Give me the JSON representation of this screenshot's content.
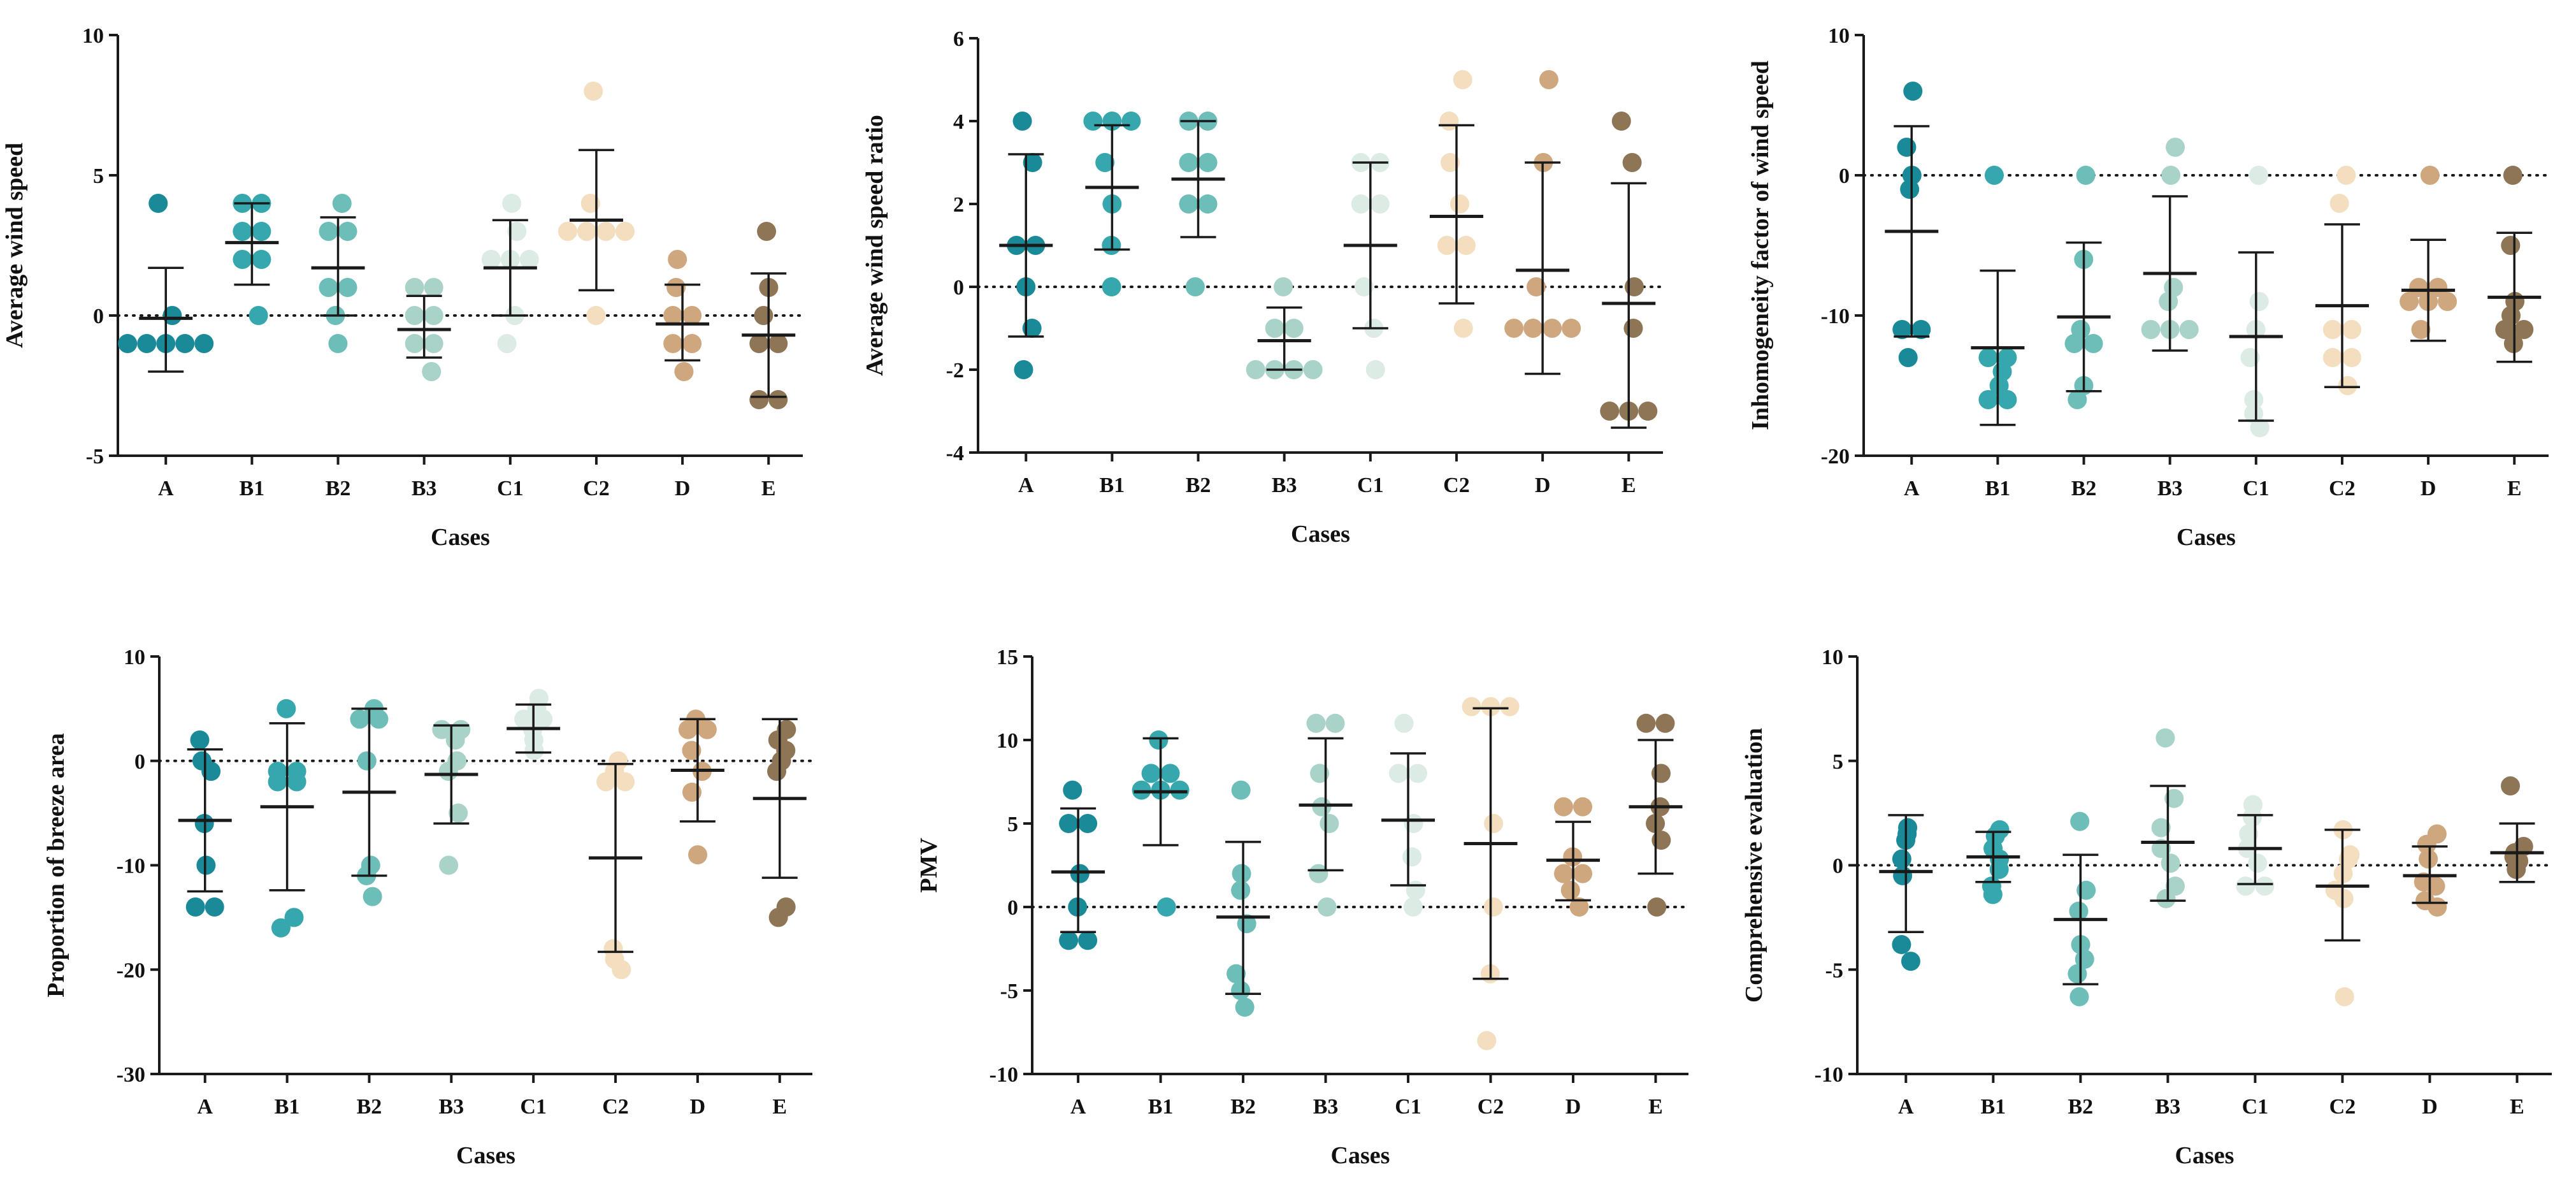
{
  "figure": {
    "cases": [
      "A",
      "B1",
      "B2",
      "B3",
      "C1",
      "C2",
      "D",
      "E"
    ],
    "case_colors": {
      "A": "#1b8a98",
      "B1": "#35a7ad",
      "B2": "#6dbdb8",
      "B3": "#a9d2c8",
      "C1": "#dcebe4",
      "C2": "#f3dec0",
      "D": "#cfa77f",
      "E": "#8e7556"
    }
  },
  "chart_data": [
    {
      "type": "scatter",
      "id": "avg-wind-speed",
      "ylabel": "Average wind speed",
      "xlabel": "Cases",
      "ylim": [
        -5,
        10
      ],
      "yticks": [
        "-5",
        "0",
        "5",
        "10"
      ],
      "categories": [
        "A",
        "B1",
        "B2",
        "B3",
        "C1",
        "C2",
        "D",
        "E"
      ],
      "series": [
        {
          "name": "A",
          "points": [
            4,
            0,
            -1,
            -1,
            -1,
            -1,
            -1
          ],
          "mean": -0.1,
          "sd_low": -2.0,
          "sd_high": 1.7
        },
        {
          "name": "B1",
          "points": [
            4,
            4,
            3,
            3,
            2,
            2,
            0
          ],
          "mean": 2.6,
          "sd_low": 1.1,
          "sd_high": 4.0
        },
        {
          "name": "B2",
          "points": [
            4,
            3,
            3,
            1,
            1,
            0,
            -1
          ],
          "mean": 1.7,
          "sd_low": 0.0,
          "sd_high": 3.5
        },
        {
          "name": "B3",
          "points": [
            1,
            1,
            0,
            0,
            -1,
            -1,
            -2
          ],
          "mean": -0.5,
          "sd_low": -1.5,
          "sd_high": 0.7
        },
        {
          "name": "C1",
          "points": [
            4,
            3,
            2,
            2,
            2,
            0,
            -1
          ],
          "mean": 1.7,
          "sd_low": 0.0,
          "sd_high": 3.4
        },
        {
          "name": "C2",
          "points": [
            8,
            4,
            3,
            3,
            3,
            3,
            0
          ],
          "mean": 3.4,
          "sd_low": 0.9,
          "sd_high": 5.9
        },
        {
          "name": "D",
          "points": [
            2,
            1,
            0,
            0,
            -1,
            -1,
            -2
          ],
          "mean": -0.3,
          "sd_low": -1.6,
          "sd_high": 1.1
        },
        {
          "name": "E",
          "points": [
            3,
            1,
            0,
            -1,
            -1,
            -3,
            -3
          ],
          "mean": -0.7,
          "sd_low": -2.9,
          "sd_high": 1.5
        }
      ]
    },
    {
      "type": "scatter",
      "id": "avg-wind-speed-ratio",
      "ylabel": "Average wind speed ratio",
      "xlabel": "Cases",
      "ylim": [
        -4,
        6
      ],
      "yticks": [
        "-4",
        "-2",
        "0",
        "2",
        "4",
        "6"
      ],
      "categories": [
        "A",
        "B1",
        "B2",
        "B3",
        "C1",
        "C2",
        "D",
        "E"
      ],
      "series": [
        {
          "name": "A",
          "points": [
            4,
            3,
            1,
            1,
            0,
            -1,
            -2
          ],
          "mean": 1.0,
          "sd_low": -1.2,
          "sd_high": 3.2
        },
        {
          "name": "B1",
          "points": [
            4,
            4,
            4,
            3,
            2,
            1,
            0
          ],
          "mean": 2.4,
          "sd_low": 0.9,
          "sd_high": 3.9
        },
        {
          "name": "B2",
          "points": [
            4,
            4,
            3,
            3,
            2,
            2,
            0
          ],
          "mean": 2.6,
          "sd_low": 1.2,
          "sd_high": 4.0
        },
        {
          "name": "B3",
          "points": [
            0,
            -1,
            -1,
            -2,
            -2,
            -2,
            -2
          ],
          "mean": -1.3,
          "sd_low": -2.0,
          "sd_high": -0.5
        },
        {
          "name": "C1",
          "points": [
            3,
            3,
            2,
            2,
            0,
            -1,
            -2
          ],
          "mean": 1.0,
          "sd_low": -1.0,
          "sd_high": 3.0
        },
        {
          "name": "C2",
          "points": [
            5,
            4,
            3,
            2,
            1,
            1,
            -1
          ],
          "mean": 1.7,
          "sd_low": -0.4,
          "sd_high": 3.9
        },
        {
          "name": "D",
          "points": [
            5,
            3,
            0,
            -1,
            -1,
            -1,
            -1
          ],
          "mean": 0.4,
          "sd_low": -2.1,
          "sd_high": 3.0
        },
        {
          "name": "E",
          "points": [
            4,
            3,
            0,
            -1,
            -3,
            -3,
            -3
          ],
          "mean": -0.4,
          "sd_low": -3.4,
          "sd_high": 2.5
        }
      ]
    },
    {
      "type": "scatter",
      "id": "inhomogeneity-factor",
      "ylabel": "Inhomogeneity factor of wind speed",
      "xlabel": "Cases",
      "ylim": [
        -20,
        10
      ],
      "yticks": [
        "-20",
        "-10",
        "0",
        "10"
      ],
      "categories": [
        "A",
        "B1",
        "B2",
        "B3",
        "C1",
        "C2",
        "D",
        "E"
      ],
      "series": [
        {
          "name": "A",
          "points": [
            6,
            2,
            0,
            -1,
            -11,
            -11,
            -13
          ],
          "mean": -4.0,
          "sd_low": -11.5,
          "sd_high": 3.5
        },
        {
          "name": "B1",
          "points": [
            0,
            -13,
            -13,
            -14,
            -15,
            -16,
            -16
          ],
          "mean": -12.3,
          "sd_low": -17.8,
          "sd_high": -6.8
        },
        {
          "name": "B2",
          "points": [
            0,
            -6,
            -11,
            -12,
            -12,
            -15,
            -16
          ],
          "mean": -10.1,
          "sd_low": -15.4,
          "sd_high": -4.8
        },
        {
          "name": "B3",
          "points": [
            2,
            0,
            -8,
            -9,
            -11,
            -11,
            -11
          ],
          "mean": -7.0,
          "sd_low": -12.5,
          "sd_high": -1.5
        },
        {
          "name": "C1",
          "points": [
            0,
            -9,
            -11,
            -13,
            -16,
            -17,
            -18
          ],
          "mean": -11.5,
          "sd_low": -17.5,
          "sd_high": -5.5
        },
        {
          "name": "C2",
          "points": [
            0,
            -2,
            -11,
            -11,
            -13,
            -13,
            -15
          ],
          "mean": -9.3,
          "sd_low": -15.1,
          "sd_high": -3.5
        },
        {
          "name": "D",
          "points": [
            0,
            -8,
            -8,
            -9,
            -9,
            -9,
            -11
          ],
          "mean": -8.2,
          "sd_low": -11.8,
          "sd_high": -4.6
        },
        {
          "name": "E",
          "points": [
            0,
            -5,
            -9,
            -10,
            -11,
            -11,
            -12
          ],
          "mean": -8.7,
          "sd_low": -13.3,
          "sd_high": -4.1
        }
      ]
    },
    {
      "type": "scatter",
      "id": "breeze-area",
      "ylabel": "Proportion of breeze area",
      "xlabel": "Cases",
      "ylim": [
        -30,
        10
      ],
      "yticks": [
        "-30",
        "-20",
        "-10",
        "0",
        "10"
      ],
      "categories": [
        "A",
        "B1",
        "B2",
        "B3",
        "C1",
        "C2",
        "D",
        "E"
      ],
      "series": [
        {
          "name": "A",
          "points": [
            2,
            0,
            -1,
            -6,
            -10,
            -14,
            -14
          ],
          "mean": -5.7,
          "sd_low": -12.5,
          "sd_high": 1.1
        },
        {
          "name": "B1",
          "points": [
            5,
            -1,
            -1,
            -2,
            -2,
            -15,
            -16
          ],
          "mean": -4.4,
          "sd_low": -12.4,
          "sd_high": 3.6
        },
        {
          "name": "B2",
          "points": [
            5,
            4,
            4,
            0,
            -10,
            -11,
            -13
          ],
          "mean": -3.0,
          "sd_low": -11.0,
          "sd_high": 5.0
        },
        {
          "name": "B3",
          "points": [
            3,
            3,
            2,
            0,
            -1,
            -5,
            -10
          ],
          "mean": -1.3,
          "sd_low": -6.0,
          "sd_high": 3.4
        },
        {
          "name": "C1",
          "points": [
            6,
            5,
            4,
            4,
            3,
            2,
            1
          ],
          "mean": 3.1,
          "sd_low": 0.8,
          "sd_high": 5.4
        },
        {
          "name": "C2",
          "points": [
            0,
            -1,
            -2,
            -2,
            -18,
            -19,
            -20
          ],
          "mean": -9.3,
          "sd_low": -18.3,
          "sd_high": -0.3
        },
        {
          "name": "D",
          "points": [
            4,
            3,
            3,
            1,
            -1,
            -3,
            -9
          ],
          "mean": -0.9,
          "sd_low": -5.8,
          "sd_high": 4.0
        },
        {
          "name": "E",
          "points": [
            3,
            2,
            1,
            0,
            -1,
            -14,
            -15
          ],
          "mean": -3.6,
          "sd_low": -11.2,
          "sd_high": 4.0
        }
      ]
    },
    {
      "type": "scatter",
      "id": "pmv",
      "ylabel": "PMV",
      "xlabel": "Cases",
      "ylim": [
        -10,
        15
      ],
      "yticks": [
        "-10",
        "-5",
        "0",
        "5",
        "10",
        "15"
      ],
      "categories": [
        "A",
        "B1",
        "B2",
        "B3",
        "C1",
        "C2",
        "D",
        "E"
      ],
      "series": [
        {
          "name": "A",
          "points": [
            7,
            5,
            5,
            2,
            0,
            -2,
            -2
          ],
          "mean": 2.1,
          "sd_low": -1.5,
          "sd_high": 5.9
        },
        {
          "name": "B1",
          "points": [
            10,
            8,
            8,
            7,
            7,
            7,
            0
          ],
          "mean": 6.9,
          "sd_low": 3.7,
          "sd_high": 10.1
        },
        {
          "name": "B2",
          "points": [
            7,
            2,
            1,
            -1,
            -4,
            -5,
            -6
          ],
          "mean": -0.6,
          "sd_low": -5.2,
          "sd_high": 3.9
        },
        {
          "name": "B3",
          "points": [
            11,
            11,
            8,
            6,
            5,
            2,
            0
          ],
          "mean": 6.1,
          "sd_low": 2.2,
          "sd_high": 10.1
        },
        {
          "name": "C1",
          "points": [
            11,
            8,
            8,
            5,
            3,
            1,
            0
          ],
          "mean": 5.2,
          "sd_low": 1.3,
          "sd_high": 9.2
        },
        {
          "name": "C2",
          "points": [
            12,
            12,
            12,
            5,
            0,
            -4,
            -8
          ],
          "mean": 3.8,
          "sd_low": -4.3,
          "sd_high": 11.9
        },
        {
          "name": "D",
          "points": [
            6,
            6,
            3,
            2,
            2,
            1,
            0
          ],
          "mean": 2.8,
          "sd_low": 0.4,
          "sd_high": 5.1
        },
        {
          "name": "E",
          "points": [
            11,
            11,
            8,
            6,
            5,
            4,
            0
          ],
          "mean": 6.0,
          "sd_low": 2.0,
          "sd_high": 10.0
        }
      ]
    },
    {
      "type": "scatter",
      "id": "comprehensive-evaluation",
      "ylabel": "Comprehensive evaluation",
      "xlabel": "Cases",
      "ylim": [
        -10,
        10
      ],
      "yticks": [
        "-10",
        "-5",
        "0",
        "5",
        "10"
      ],
      "categories": [
        "A",
        "B1",
        "B2",
        "B3",
        "C1",
        "C2",
        "D",
        "E"
      ],
      "series": [
        {
          "name": "A",
          "points": [
            1.8,
            1.5,
            1.2,
            0.3,
            -0.5,
            -3.8,
            -4.6
          ],
          "mean": -0.3,
          "sd_low": -3.2,
          "sd_high": 2.4
        },
        {
          "name": "B1",
          "points": [
            1.7,
            1.4,
            0.8,
            0.3,
            -0.2,
            -1.0,
            -1.4
          ],
          "mean": 0.4,
          "sd_low": -0.8,
          "sd_high": 1.6
        },
        {
          "name": "B2",
          "points": [
            2.1,
            -1.2,
            -2.2,
            -3.8,
            -4.5,
            -5.2,
            -6.3
          ],
          "mean": -2.6,
          "sd_low": -5.7,
          "sd_high": 0.5
        },
        {
          "name": "B3",
          "points": [
            6.1,
            3.2,
            1.8,
            0.8,
            0.1,
            -1.0,
            -1.6
          ],
          "mean": 1.1,
          "sd_low": -1.7,
          "sd_high": 3.8
        },
        {
          "name": "C1",
          "points": [
            2.9,
            2.3,
            1.5,
            0.8,
            0.1,
            -1.0,
            -1.0
          ],
          "mean": 0.8,
          "sd_low": -0.9,
          "sd_high": 2.4
        },
        {
          "name": "C2",
          "points": [
            1.7,
            0.5,
            0.3,
            -0.4,
            -1.2,
            -1.6,
            -6.3
          ],
          "mean": -1.0,
          "sd_low": -3.6,
          "sd_high": 1.7
        },
        {
          "name": "D",
          "points": [
            1.5,
            1.0,
            0.3,
            -0.8,
            -1.0,
            -1.7,
            -2.0
          ],
          "mean": -0.5,
          "sd_low": -1.8,
          "sd_high": 0.9
        },
        {
          "name": "E",
          "points": [
            3.8,
            0.9,
            0.6,
            0.4,
            0.2,
            0.1,
            -0.2
          ],
          "mean": 0.6,
          "sd_low": -0.8,
          "sd_high": 2.0
        }
      ]
    }
  ]
}
